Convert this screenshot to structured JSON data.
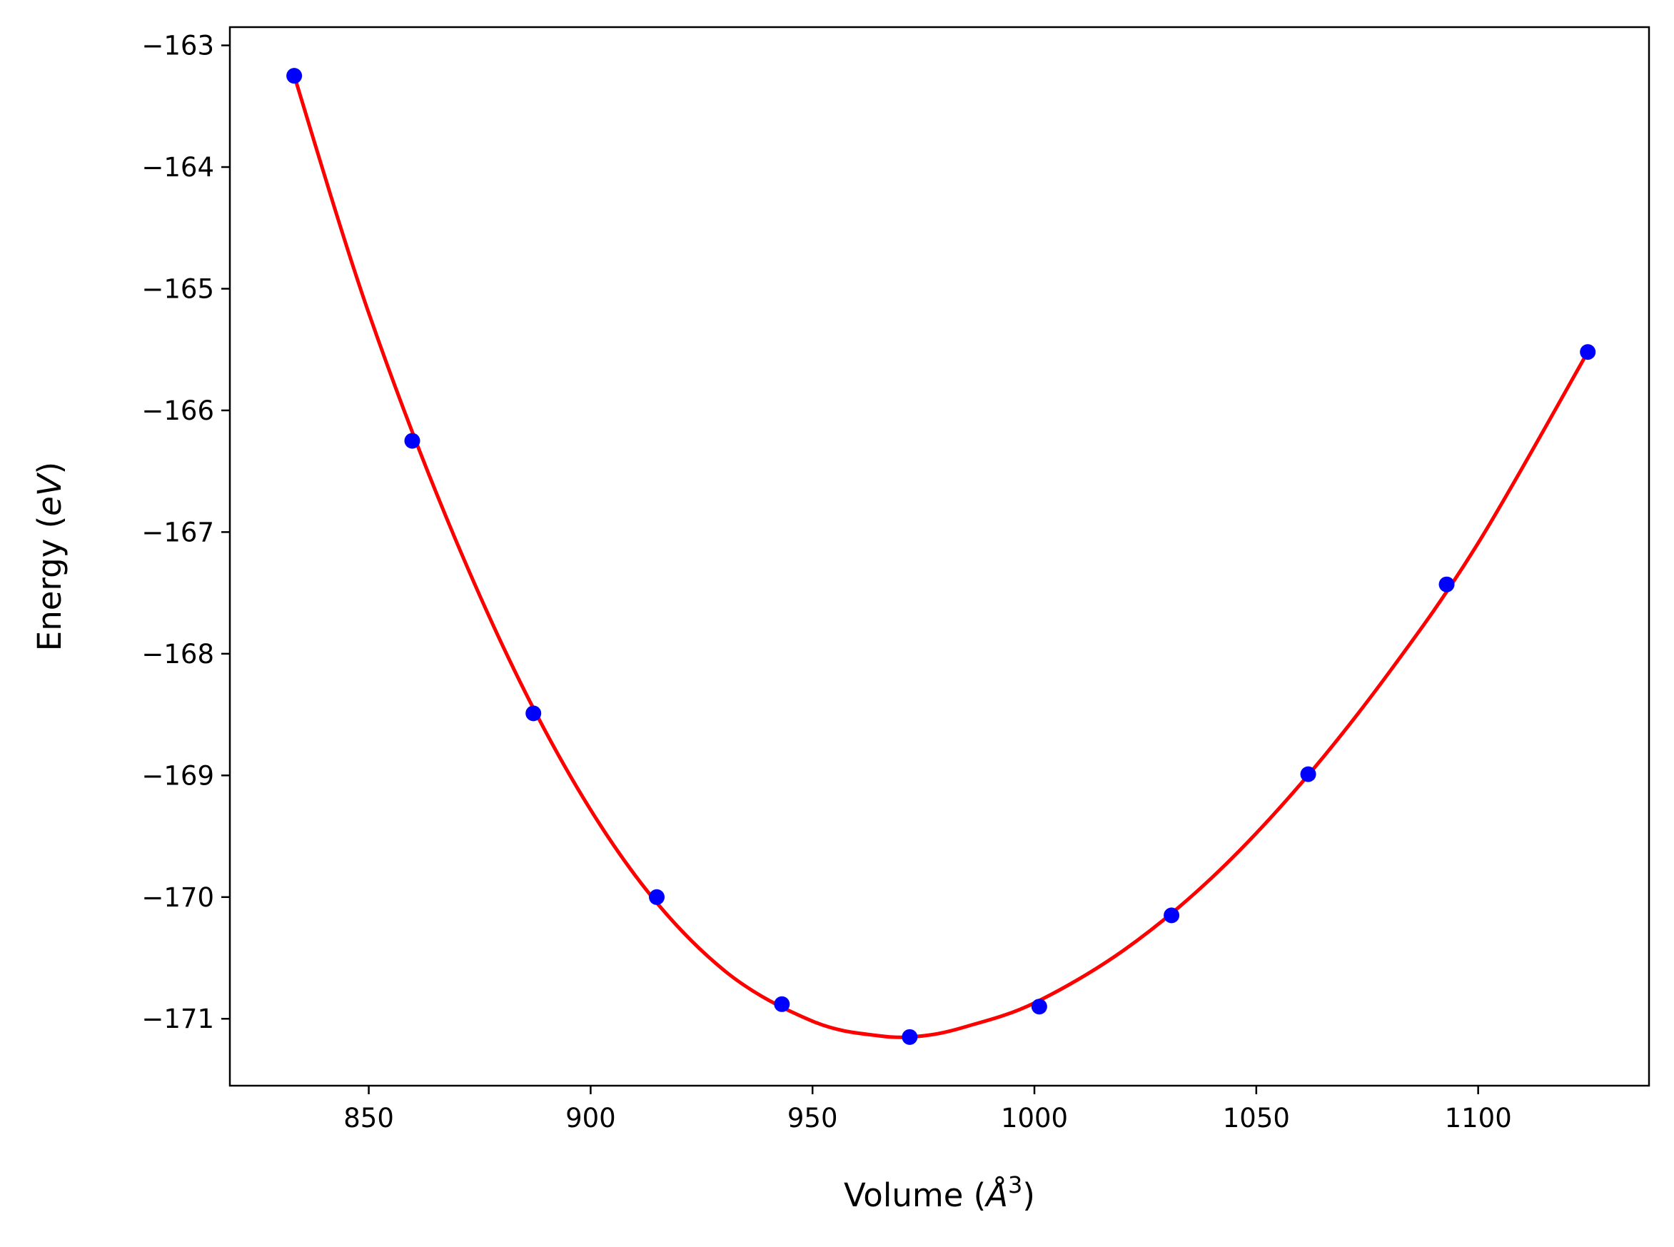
{
  "chart_data": {
    "type": "scatter",
    "title": "",
    "xlabel": {
      "prefix": "Volume (",
      "symbol": "Å",
      "superscript": "3",
      "suffix": ")"
    },
    "ylabel": {
      "prefix": "Energy (",
      "italic": "eV",
      "suffix": ")"
    },
    "xlim": [
      818.7,
      1138.5
    ],
    "ylim": [
      -171.55,
      -162.85
    ],
    "xticks": [
      850,
      900,
      950,
      1000,
      1050,
      1100
    ],
    "xtick_labels": [
      "850",
      "900",
      "950",
      "1000",
      "1050",
      "1100"
    ],
    "yticks": [
      -163,
      -164,
      -165,
      -166,
      -167,
      -168,
      -169,
      -170,
      -171
    ],
    "ytick_labels": [
      "−163",
      "−164",
      "−165",
      "−166",
      "−167",
      "−168",
      "−169",
      "−170",
      "−171"
    ],
    "grid": false,
    "series": [
      {
        "kind": "points",
        "color": "#0000ff",
        "x": [
          833.2,
          859.8,
          887.1,
          914.9,
          943.1,
          971.9,
          1001.1,
          1030.9,
          1061.7,
          1092.9,
          1124.7
        ],
        "y": [
          -163.25,
          -166.25,
          -168.49,
          -170.0,
          -170.88,
          -171.15,
          -170.9,
          -170.15,
          -168.99,
          -167.43,
          -165.52
        ]
      },
      {
        "kind": "fit-line",
        "color": "#ff0000",
        "x": [
          833.2,
          850,
          870,
          890,
          910,
          930,
          950,
          965,
          975,
          985,
          1000,
          1020,
          1040,
          1060,
          1080,
          1100,
          1124.7
        ],
        "y": [
          -163.25,
          -165.2,
          -167.1,
          -168.65,
          -169.82,
          -170.6,
          -171.02,
          -171.14,
          -171.14,
          -171.06,
          -170.87,
          -170.44,
          -169.84,
          -169.07,
          -168.15,
          -167.09,
          -165.52
        ]
      }
    ]
  }
}
